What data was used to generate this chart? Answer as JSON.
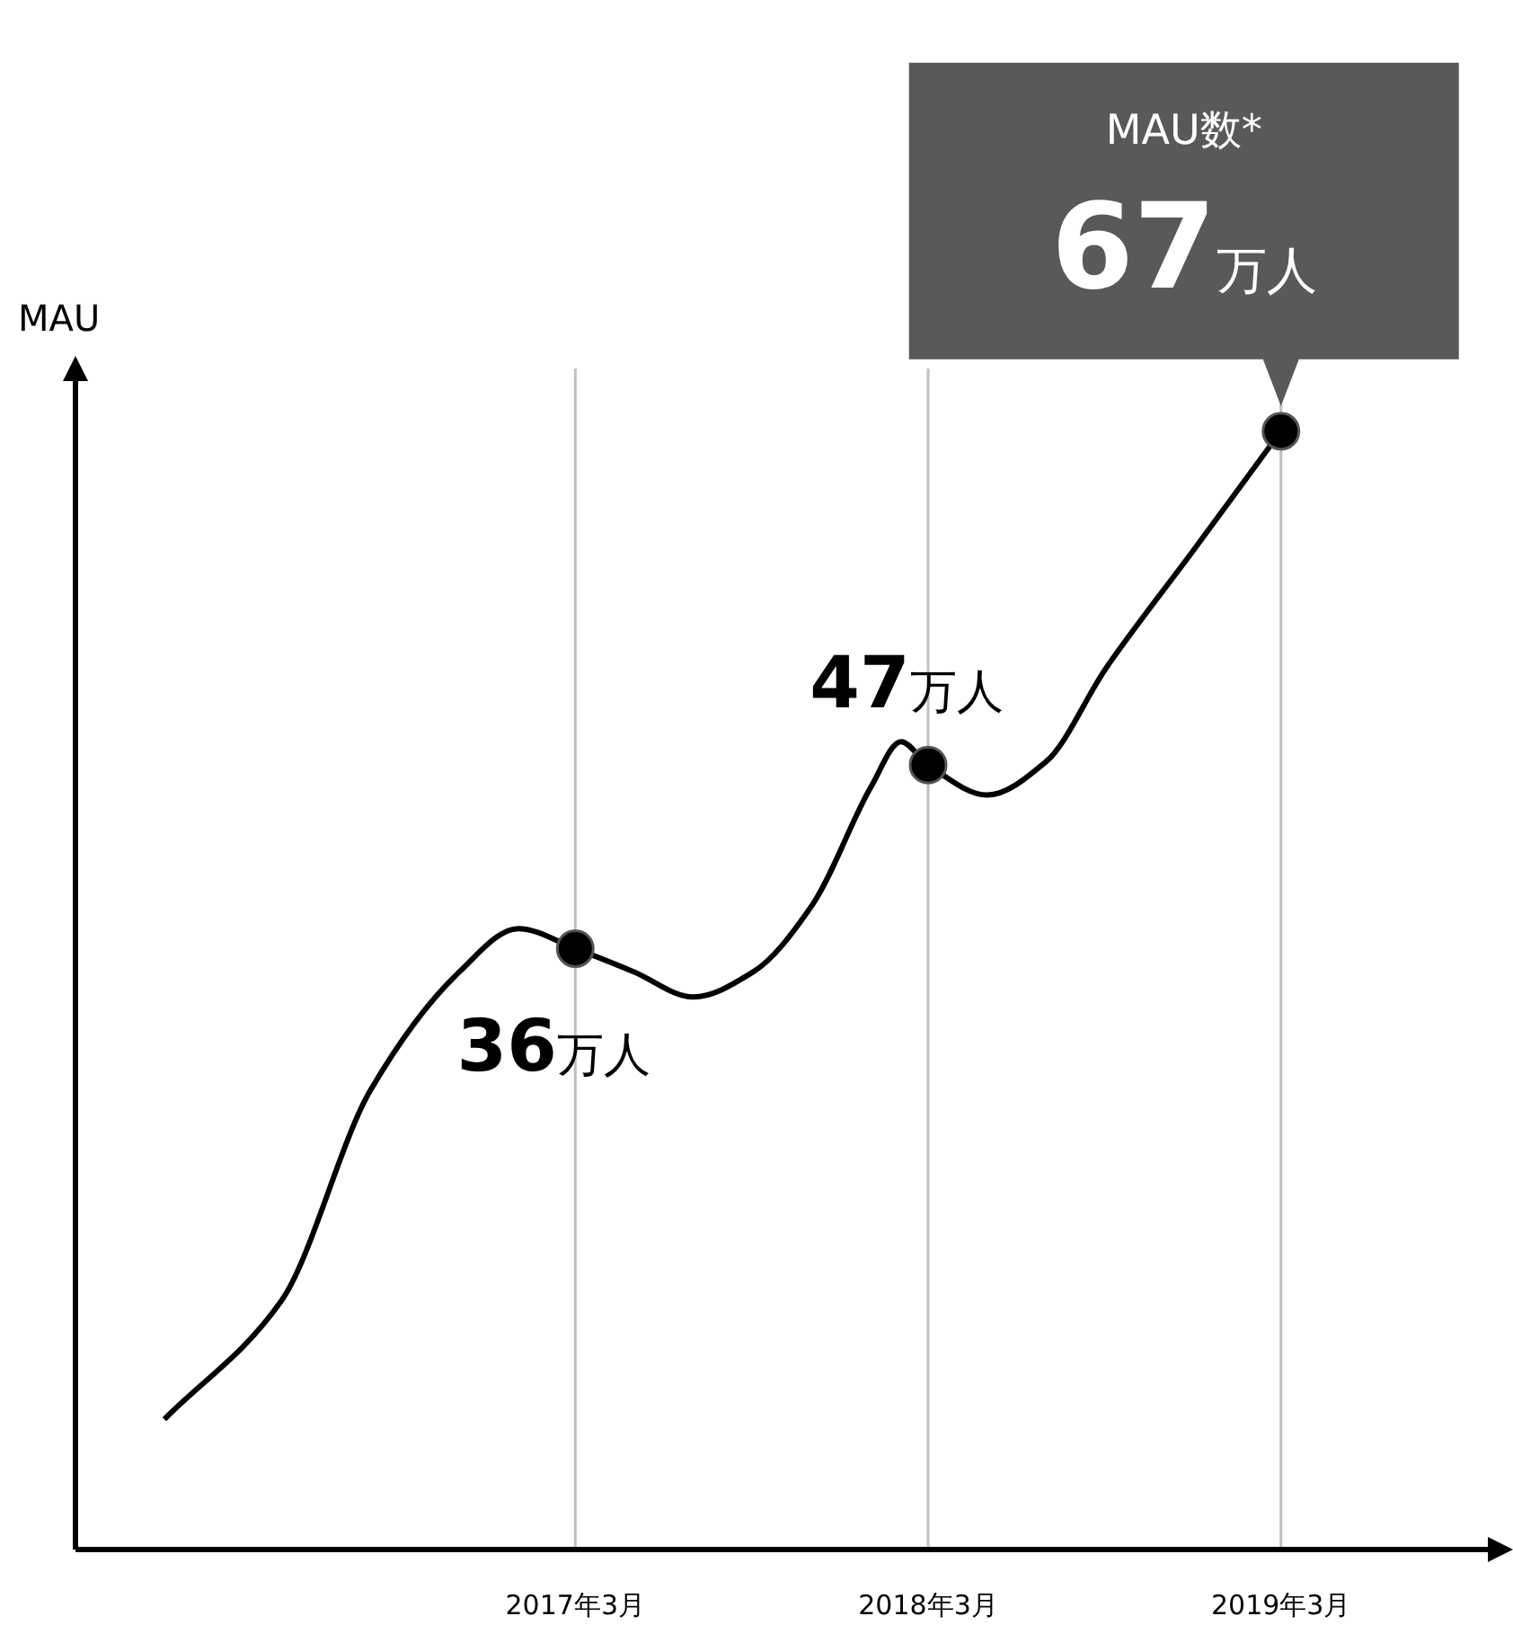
{
  "chart_data": {
    "type": "line",
    "ylabel": "MAU",
    "xlim": [
      "2015-10",
      "2019-10"
    ],
    "ylim": [
      0,
      70
    ],
    "tick_labels": "x",
    "grid": "x",
    "xticks": [
      {
        "value": "2017-03",
        "label": "2017年3月"
      },
      {
        "value": "2018-03",
        "label": "2018年3月"
      },
      {
        "value": "2019-03",
        "label": "2019年3月"
      }
    ],
    "series": [
      {
        "color": "#000000",
        "x": [
          "2016-01",
          "2016-05",
          "2016-08",
          "2016-11",
          "2017-01",
          "2017-03",
          "2017-05",
          "2017-07",
          "2017-09",
          "2017-11",
          "2018-01",
          "2018-02",
          "2018-03",
          "2018-05",
          "2018-07",
          "2018-09",
          "2018-12",
          "2019-03"
        ],
        "values": [
          7.8,
          14.9,
          27.5,
          34.6,
          37.2,
          36,
          34.6,
          33.1,
          34.6,
          38.6,
          45.7,
          48.4,
          47,
          45.2,
          47.2,
          52.8,
          59.9,
          67
        ]
      },
      {
        "type": "scatter",
        "color": "#000000",
        "marker": "circle",
        "x": [
          "2017-03",
          "2018-03",
          "2019-03"
        ],
        "values": [
          36,
          47,
          67
        ],
        "value_labels": [
          "36万人",
          "47万人",
          "67万人"
        ]
      }
    ],
    "annotations": [
      "MAU数*"
    ]
  }
}
